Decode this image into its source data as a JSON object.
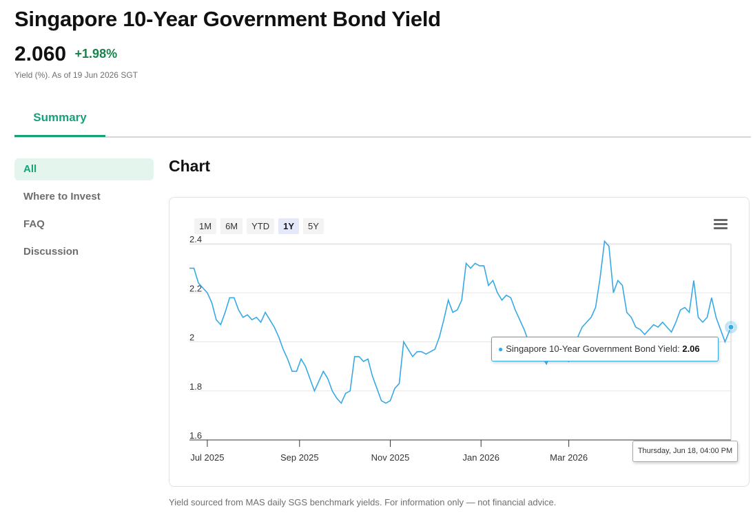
{
  "header": {
    "title": "Singapore 10-Year Government Bond Yield",
    "price": "2.060",
    "change": "+1.98%",
    "as_of": "Yield (%). As of 19 Jun 2026 SGT"
  },
  "tabs": [
    {
      "label": "Summary",
      "active": true
    }
  ],
  "sidenav": {
    "items": [
      {
        "label": "All",
        "active": true
      },
      {
        "label": "Where to Invest"
      },
      {
        "label": "FAQ"
      },
      {
        "label": "Discussion"
      }
    ]
  },
  "section": {
    "title": "Chart"
  },
  "ranges": {
    "items": [
      "1M",
      "6M",
      "YTD",
      "1Y",
      "5Y"
    ],
    "active": "1Y"
  },
  "menu_icon": "hamburger-menu-icon",
  "tooltip": {
    "series_label": "Singapore 10-Year Government Bond Yield:",
    "value": "2.06"
  },
  "date_tooltip": "Thursday, Jun 18, 04:00 PM",
  "footer": "Yield sourced from MAS daily SGS benchmark yields. For information only — not financial advice.",
  "colors": {
    "accent": "#17a17a",
    "positive": "#16834b",
    "series": "#36a8e6"
  },
  "chart_data": {
    "type": "line",
    "title": "",
    "xlabel": "",
    "ylabel": "",
    "ylim": [
      1.6,
      2.4
    ],
    "y_ticks": [
      "1.6",
      "1.8",
      "2",
      "2.2",
      "2.4"
    ],
    "x_ticks": [
      {
        "label": "Jul 2025",
        "date": "2025-07-01"
      },
      {
        "label": "Sep 2025",
        "date": "2025-09-01"
      },
      {
        "label": "Nov 2025",
        "date": "2025-11-01"
      },
      {
        "label": "Jan 2026",
        "date": "2026-01-01"
      },
      {
        "label": "Mar 2026",
        "date": "2026-03-01"
      }
    ],
    "x_range": [
      "2025-06-19",
      "2026-06-18"
    ],
    "grid": "horizontal",
    "legend": "none",
    "series": [
      {
        "color": "#36a8e6",
        "points": [
          [
            "2025-06-19",
            2.3
          ],
          [
            "2025-06-22",
            2.3
          ],
          [
            "2025-06-25",
            2.24
          ],
          [
            "2025-06-28",
            2.22
          ],
          [
            "2025-07-01",
            2.2
          ],
          [
            "2025-07-04",
            2.16
          ],
          [
            "2025-07-07",
            2.09
          ],
          [
            "2025-07-10",
            2.07
          ],
          [
            "2025-07-13",
            2.12
          ],
          [
            "2025-07-16",
            2.18
          ],
          [
            "2025-07-19",
            2.18
          ],
          [
            "2025-07-22",
            2.13
          ],
          [
            "2025-07-25",
            2.1
          ],
          [
            "2025-07-28",
            2.11
          ],
          [
            "2025-07-31",
            2.09
          ],
          [
            "2025-08-03",
            2.1
          ],
          [
            "2025-08-06",
            2.08
          ],
          [
            "2025-08-09",
            2.12
          ],
          [
            "2025-08-12",
            2.09
          ],
          [
            "2025-08-15",
            2.06
          ],
          [
            "2025-08-18",
            2.02
          ],
          [
            "2025-08-21",
            1.97
          ],
          [
            "2025-08-24",
            1.93
          ],
          [
            "2025-08-27",
            1.88
          ],
          [
            "2025-08-30",
            1.88
          ],
          [
            "2025-09-02",
            1.93
          ],
          [
            "2025-09-05",
            1.9
          ],
          [
            "2025-09-08",
            1.85
          ],
          [
            "2025-09-11",
            1.8
          ],
          [
            "2025-09-14",
            1.84
          ],
          [
            "2025-09-17",
            1.88
          ],
          [
            "2025-09-20",
            1.85
          ],
          [
            "2025-09-23",
            1.8
          ],
          [
            "2025-09-26",
            1.77
          ],
          [
            "2025-09-29",
            1.75
          ],
          [
            "2025-10-02",
            1.79
          ],
          [
            "2025-10-05",
            1.8
          ],
          [
            "2025-10-08",
            1.94
          ],
          [
            "2025-10-11",
            1.94
          ],
          [
            "2025-10-14",
            1.92
          ],
          [
            "2025-10-17",
            1.93
          ],
          [
            "2025-10-20",
            1.86
          ],
          [
            "2025-10-23",
            1.81
          ],
          [
            "2025-10-26",
            1.76
          ],
          [
            "2025-10-29",
            1.75
          ],
          [
            "2025-11-01",
            1.76
          ],
          [
            "2025-11-04",
            1.81
          ],
          [
            "2025-11-07",
            1.83
          ],
          [
            "2025-11-10",
            2.0
          ],
          [
            "2025-11-13",
            1.97
          ],
          [
            "2025-11-16",
            1.94
          ],
          [
            "2025-11-19",
            1.96
          ],
          [
            "2025-11-22",
            1.96
          ],
          [
            "2025-11-25",
            1.95
          ],
          [
            "2025-11-28",
            1.96
          ],
          [
            "2025-12-01",
            1.97
          ],
          [
            "2025-12-04",
            2.02
          ],
          [
            "2025-12-07",
            2.09
          ],
          [
            "2025-12-10",
            2.17
          ],
          [
            "2025-12-13",
            2.12
          ],
          [
            "2025-12-16",
            2.13
          ],
          [
            "2025-12-19",
            2.17
          ],
          [
            "2025-12-22",
            2.32
          ],
          [
            "2025-12-25",
            2.3
          ],
          [
            "2025-12-28",
            2.32
          ],
          [
            "2025-12-31",
            2.31
          ],
          [
            "2026-01-03",
            2.31
          ],
          [
            "2026-01-06",
            2.23
          ],
          [
            "2026-01-09",
            2.25
          ],
          [
            "2026-01-12",
            2.2
          ],
          [
            "2026-01-15",
            2.17
          ],
          [
            "2026-01-18",
            2.19
          ],
          [
            "2026-01-21",
            2.18
          ],
          [
            "2026-01-24",
            2.13
          ],
          [
            "2026-01-27",
            2.09
          ],
          [
            "2026-01-30",
            2.05
          ],
          [
            "2026-02-02",
            2.0
          ],
          [
            "2026-02-05",
            1.98
          ],
          [
            "2026-02-08",
            1.96
          ],
          [
            "2026-02-11",
            1.94
          ],
          [
            "2026-02-14",
            1.91
          ],
          [
            "2026-02-17",
            1.96
          ],
          [
            "2026-02-20",
            1.96
          ],
          [
            "2026-02-23",
            1.99
          ],
          [
            "2026-02-26",
            1.93
          ],
          [
            "2026-03-01",
            1.92
          ],
          [
            "2026-03-04",
            1.98
          ],
          [
            "2026-03-07",
            2.02
          ],
          [
            "2026-03-10",
            2.06
          ],
          [
            "2026-03-13",
            2.08
          ],
          [
            "2026-03-16",
            2.1
          ],
          [
            "2026-03-19",
            2.14
          ],
          [
            "2026-03-22",
            2.26
          ],
          [
            "2026-03-25",
            2.41
          ],
          [
            "2026-03-28",
            2.39
          ],
          [
            "2026-03-31",
            2.2
          ],
          [
            "2026-04-03",
            2.25
          ],
          [
            "2026-04-06",
            2.23
          ],
          [
            "2026-04-09",
            2.12
          ],
          [
            "2026-04-12",
            2.1
          ],
          [
            "2026-04-15",
            2.06
          ],
          [
            "2026-04-18",
            2.05
          ],
          [
            "2026-04-21",
            2.03
          ],
          [
            "2026-04-24",
            2.05
          ],
          [
            "2026-04-27",
            2.07
          ],
          [
            "2026-04-30",
            2.06
          ],
          [
            "2026-05-03",
            2.08
          ],
          [
            "2026-05-06",
            2.06
          ],
          [
            "2026-05-09",
            2.04
          ],
          [
            "2026-05-12",
            2.08
          ],
          [
            "2026-05-15",
            2.13
          ],
          [
            "2026-05-18",
            2.14
          ],
          [
            "2026-05-21",
            2.12
          ],
          [
            "2026-05-24",
            2.25
          ],
          [
            "2026-05-27",
            2.1
          ],
          [
            "2026-05-30",
            2.08
          ],
          [
            "2026-06-02",
            2.1
          ],
          [
            "2026-06-05",
            2.18
          ],
          [
            "2026-06-08",
            2.1
          ],
          [
            "2026-06-11",
            2.05
          ],
          [
            "2026-06-14",
            2.0
          ],
          [
            "2026-06-18",
            2.06
          ]
        ]
      }
    ],
    "highlight": {
      "date": "2026-06-18",
      "value": 2.06
    }
  }
}
